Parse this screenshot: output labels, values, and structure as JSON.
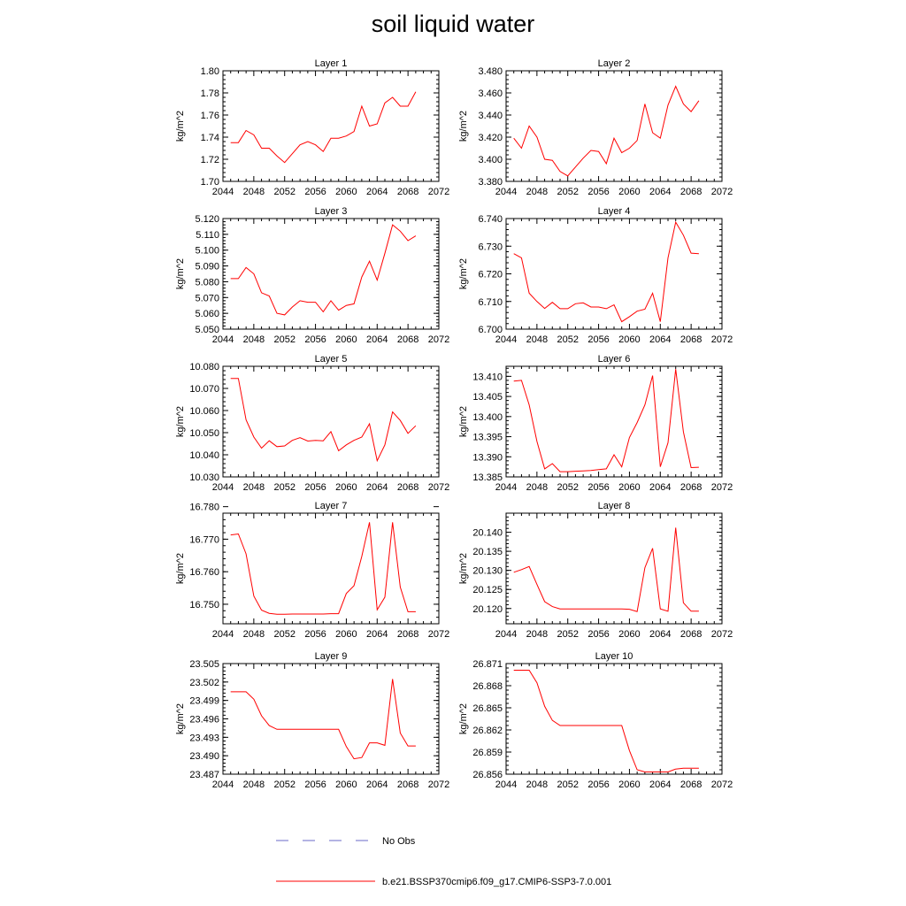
{
  "title": "soil liquid water",
  "legend": {
    "obs_label": "No Obs",
    "obs_color": "#6a6ac8",
    "model_label": "b.e21.BSSP370cmip6.f09_g17.CMIP6-SSP3-7.0.001",
    "model_color": "#ff0000"
  },
  "chart_data": [
    {
      "type": "line",
      "title": "Layer 1",
      "ylabel": "kg/m^2",
      "xlim": [
        2044,
        2072
      ],
      "ylim": [
        1.7,
        1.8
      ],
      "xticks": [
        "2044",
        "2048",
        "2052",
        "2056",
        "2060",
        "2064",
        "2068",
        "2072"
      ],
      "yticks": [
        "1.70",
        "1.72",
        "1.74",
        "1.76",
        "1.78",
        "1.80"
      ],
      "x": [
        2045,
        2046,
        2047,
        2048,
        2049,
        2050,
        2051,
        2052,
        2053,
        2054,
        2055,
        2056,
        2057,
        2058,
        2059,
        2060,
        2061,
        2062,
        2063,
        2064,
        2065,
        2066,
        2067,
        2068,
        2069
      ],
      "values": [
        1.735,
        1.735,
        1.746,
        1.742,
        1.73,
        1.73,
        1.723,
        1.717,
        1.725,
        1.733,
        1.736,
        1.733,
        1.727,
        1.739,
        1.739,
        1.741,
        1.745,
        1.768,
        1.75,
        1.752,
        1.771,
        1.776,
        1.768,
        1.768,
        1.781
      ]
    },
    {
      "type": "line",
      "title": "Layer 2",
      "ylabel": "kg/m^2",
      "xlim": [
        2044,
        2072
      ],
      "ylim": [
        3.38,
        3.48
      ],
      "xticks": [
        "2044",
        "2048",
        "2052",
        "2056",
        "2060",
        "2064",
        "2068",
        "2072"
      ],
      "yticks": [
        "3.380",
        "3.400",
        "3.420",
        "3.440",
        "3.460",
        "3.480"
      ],
      "x": [
        2045,
        2046,
        2047,
        2048,
        2049,
        2050,
        2051,
        2052,
        2053,
        2054,
        2055,
        2056,
        2057,
        2058,
        2059,
        2060,
        2061,
        2062,
        2063,
        2064,
        2065,
        2066,
        2067,
        2068,
        2069
      ],
      "values": [
        3.419,
        3.41,
        3.43,
        3.42,
        3.4,
        3.399,
        3.389,
        3.385,
        3.393,
        3.401,
        3.408,
        3.407,
        3.396,
        3.419,
        3.406,
        3.41,
        3.417,
        3.45,
        3.424,
        3.419,
        3.449,
        3.466,
        3.45,
        3.443,
        3.453
      ]
    },
    {
      "type": "line",
      "title": "Layer 3",
      "ylabel": "kg/m^2",
      "xlim": [
        2044,
        2072
      ],
      "ylim": [
        5.05,
        5.12
      ],
      "xticks": [
        "2044",
        "2048",
        "2052",
        "2056",
        "2060",
        "2064",
        "2068",
        "2072"
      ],
      "yticks": [
        "5.050",
        "5.060",
        "5.070",
        "5.080",
        "5.090",
        "5.100",
        "5.110",
        "5.120"
      ],
      "x": [
        2045,
        2046,
        2047,
        2048,
        2049,
        2050,
        2051,
        2052,
        2053,
        2054,
        2055,
        2056,
        2057,
        2058,
        2059,
        2060,
        2061,
        2062,
        2063,
        2064,
        2065,
        2066,
        2067,
        2068,
        2069
      ],
      "values": [
        5.082,
        5.082,
        5.089,
        5.085,
        5.073,
        5.071,
        5.06,
        5.059,
        5.064,
        5.068,
        5.067,
        5.067,
        5.061,
        5.068,
        5.062,
        5.065,
        5.066,
        5.083,
        5.093,
        5.081,
        5.098,
        5.116,
        5.112,
        5.106,
        5.109
      ]
    },
    {
      "type": "line",
      "title": "Layer 4",
      "ylabel": "kg/m^2",
      "xlim": [
        2044,
        2072
      ],
      "ylim": [
        6.7,
        6.74
      ],
      "xticks": [
        "2044",
        "2048",
        "2052",
        "2056",
        "2060",
        "2064",
        "2068",
        "2072"
      ],
      "yticks": [
        "6.700",
        "6.710",
        "6.720",
        "6.730",
        "6.740"
      ],
      "x": [
        2045,
        2046,
        2047,
        2048,
        2049,
        2050,
        2051,
        2052,
        2053,
        2054,
        2055,
        2056,
        2057,
        2058,
        2059,
        2060,
        2061,
        2062,
        2063,
        2064,
        2065,
        2066,
        2067,
        2068,
        2069
      ],
      "values": [
        6.7273,
        6.7258,
        6.713,
        6.71,
        6.7075,
        6.7097,
        6.7074,
        6.7074,
        6.7092,
        6.7095,
        6.708,
        6.708,
        6.7074,
        6.7088,
        6.7027,
        6.7045,
        6.7065,
        6.7072,
        6.713,
        6.7027,
        6.7258,
        6.7387,
        6.734,
        6.7275,
        6.7273
      ]
    },
    {
      "type": "line",
      "title": "Layer 5",
      "ylabel": "kg/m^2",
      "xlim": [
        2044,
        2072
      ],
      "ylim": [
        10.03,
        10.08
      ],
      "xticks": [
        "2044",
        "2048",
        "2052",
        "2056",
        "2060",
        "2064",
        "2068",
        "2072"
      ],
      "yticks": [
        "10.030",
        "10.040",
        "10.050",
        "10.060",
        "10.070",
        "10.080"
      ],
      "x": [
        2045,
        2046,
        2047,
        2048,
        2049,
        2050,
        2051,
        2052,
        2053,
        2054,
        2055,
        2056,
        2057,
        2058,
        2059,
        2060,
        2061,
        2062,
        2063,
        2064,
        2065,
        2066,
        2067,
        2068,
        2069
      ],
      "values": [
        10.0745,
        10.0745,
        10.0558,
        10.048,
        10.043,
        10.0463,
        10.0437,
        10.044,
        10.0465,
        10.0477,
        10.0462,
        10.0465,
        10.0463,
        10.0505,
        10.0418,
        10.0445,
        10.0465,
        10.048,
        10.054,
        10.0373,
        10.0445,
        10.0594,
        10.0555,
        10.0497,
        10.0531
      ]
    },
    {
      "type": "line",
      "title": "Layer 6",
      "ylabel": "kg/m^2",
      "xlim": [
        2044,
        2072
      ],
      "ylim": [
        13.385,
        13.4125
      ],
      "xticks": [
        "2044",
        "2048",
        "2052",
        "2056",
        "2060",
        "2064",
        "2068",
        "2072"
      ],
      "yticks": [
        "13.385",
        "13.390",
        "13.395",
        "13.400",
        "13.405",
        "13.410"
      ],
      "x": [
        2045,
        2046,
        2047,
        2048,
        2049,
        2050,
        2051,
        2052,
        2053,
        2054,
        2055,
        2056,
        2057,
        2058,
        2059,
        2060,
        2061,
        2062,
        2063,
        2064,
        2065,
        2066,
        2067,
        2068,
        2069
      ],
      "values": [
        13.4088,
        13.409,
        13.4029,
        13.3938,
        13.387,
        13.3883,
        13.3863,
        13.3863,
        13.3864,
        13.3865,
        13.3866,
        13.3868,
        13.387,
        13.3905,
        13.3875,
        13.3948,
        13.3985,
        13.4029,
        13.4102,
        13.3875,
        13.3935,
        13.4118,
        13.3962,
        13.3873,
        13.3874
      ]
    },
    {
      "type": "line",
      "title": "Layer 7",
      "ylabel": "kg/m^2",
      "xlim": [
        2044,
        2072
      ],
      "ylim": [
        16.744,
        16.778
      ],
      "xticks": [
        "2044",
        "2048",
        "2052",
        "2056",
        "2060",
        "2064",
        "2068",
        "2072"
      ],
      "yticks": [
        "16.750",
        "16.760",
        "16.770",
        "16.780"
      ],
      "x": [
        2045,
        2046,
        2047,
        2048,
        2049,
        2050,
        2051,
        2052,
        2053,
        2054,
        2055,
        2056,
        2057,
        2058,
        2059,
        2060,
        2061,
        2062,
        2063,
        2064,
        2065,
        2066,
        2067,
        2068,
        2069
      ],
      "values": [
        16.7713,
        16.7716,
        16.7655,
        16.7525,
        16.7482,
        16.7472,
        16.7469,
        16.7469,
        16.747,
        16.747,
        16.747,
        16.747,
        16.747,
        16.7471,
        16.7471,
        16.7533,
        16.7557,
        16.7647,
        16.7752,
        16.7483,
        16.7522,
        16.7752,
        16.7553,
        16.7477,
        16.7477
      ]
    },
    {
      "type": "line",
      "title": "Layer 8",
      "ylabel": "kg/m^2",
      "xlim": [
        2044,
        2072
      ],
      "ylim": [
        20.116,
        20.145
      ],
      "xticks": [
        "2044",
        "2048",
        "2052",
        "2056",
        "2060",
        "2064",
        "2068",
        "2072"
      ],
      "yticks": [
        "20.120",
        "20.125",
        "20.130",
        "20.135",
        "20.140"
      ],
      "x": [
        2045,
        2046,
        2047,
        2048,
        2049,
        2050,
        2051,
        2052,
        2053,
        2054,
        2055,
        2056,
        2057,
        2058,
        2059,
        2060,
        2061,
        2062,
        2063,
        2064,
        2065,
        2066,
        2067,
        2068,
        2069
      ],
      "values": [
        20.1295,
        20.1302,
        20.131,
        20.1263,
        20.1218,
        20.1205,
        20.1199,
        20.1199,
        20.1199,
        20.1199,
        20.1199,
        20.1199,
        20.1199,
        20.1199,
        20.1199,
        20.1198,
        20.1192,
        20.1307,
        20.1358,
        20.1199,
        20.1193,
        20.1412,
        20.1215,
        20.1193,
        20.1193
      ]
    },
    {
      "type": "line",
      "title": "Layer 9",
      "ylabel": "kg/m^2",
      "xlim": [
        2044,
        2072
      ],
      "ylim": [
        23.487,
        23.505
      ],
      "xticks": [
        "2044",
        "2048",
        "2052",
        "2056",
        "2060",
        "2064",
        "2068",
        "2072"
      ],
      "yticks": [
        "23.487",
        "23.490",
        "23.493",
        "23.496",
        "23.499",
        "23.502",
        "23.505"
      ],
      "x": [
        2045,
        2046,
        2047,
        2048,
        2049,
        2050,
        2051,
        2052,
        2053,
        2054,
        2055,
        2056,
        2057,
        2058,
        2059,
        2060,
        2061,
        2062,
        2063,
        2064,
        2065,
        2066,
        2067,
        2068,
        2069
      ],
      "values": [
        23.5004,
        23.5004,
        23.5004,
        23.4992,
        23.4965,
        23.4949,
        23.4943,
        23.4943,
        23.4943,
        23.4943,
        23.4943,
        23.4943,
        23.4943,
        23.4943,
        23.4943,
        23.4915,
        23.4895,
        23.4897,
        23.4921,
        23.4921,
        23.4917,
        23.5025,
        23.4937,
        23.4916,
        23.4916
      ]
    },
    {
      "type": "line",
      "title": "Layer 10",
      "ylabel": "kg/m^2",
      "xlim": [
        2044,
        2072
      ],
      "ylim": [
        26.856,
        26.871
      ],
      "xticks": [
        "2044",
        "2048",
        "2052",
        "2056",
        "2060",
        "2064",
        "2068",
        "2072"
      ],
      "yticks": [
        "26.856",
        "26.859",
        "26.862",
        "26.865",
        "26.868",
        "26.871"
      ],
      "x": [
        2045,
        2046,
        2047,
        2048,
        2049,
        2050,
        2051,
        2052,
        2053,
        2054,
        2055,
        2056,
        2057,
        2058,
        2059,
        2060,
        2061,
        2062,
        2063,
        2064,
        2065,
        2066,
        2067,
        2068,
        2069
      ],
      "values": [
        26.8701,
        26.8701,
        26.8701,
        26.8684,
        26.8652,
        26.8633,
        26.8626,
        26.8626,
        26.8626,
        26.8626,
        26.8626,
        26.8626,
        26.8626,
        26.8626,
        26.8626,
        26.8592,
        26.8566,
        26.8563,
        26.8563,
        26.8563,
        26.8563,
        26.8567,
        26.8568,
        26.8568,
        26.8568
      ]
    }
  ]
}
